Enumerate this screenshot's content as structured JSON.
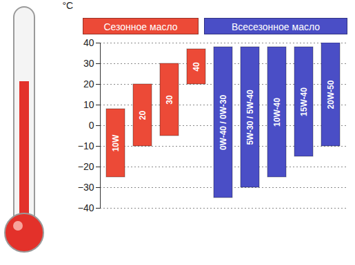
{
  "chart_data": {
    "type": "range_bar",
    "ylabel": "°C",
    "ylim": [
      -40,
      40
    ],
    "yticks": [
      -40,
      -30,
      -20,
      -10,
      0,
      10,
      20,
      30,
      40
    ],
    "grid": true,
    "legend": "top",
    "tick_labels": "y",
    "series": [
      {
        "name": "Сезонное масло",
        "color": "#ec4a37",
        "categories": [
          "10W",
          "20",
          "30",
          "40"
        ],
        "low": [
          -25,
          -10,
          -5,
          20
        ],
        "high": [
          8,
          20,
          30,
          37
        ]
      },
      {
        "name": "Всесезонное масло",
        "color": "#4a4ec6",
        "categories": [
          "0W-40 / 0W-30",
          "5W-30 / 5W-40",
          "10W-40",
          "15W-40",
          "20W-50"
        ],
        "low": [
          -35,
          -30,
          -25,
          -15,
          -10
        ],
        "high": [
          38,
          38,
          38,
          38,
          40
        ]
      }
    ]
  }
}
